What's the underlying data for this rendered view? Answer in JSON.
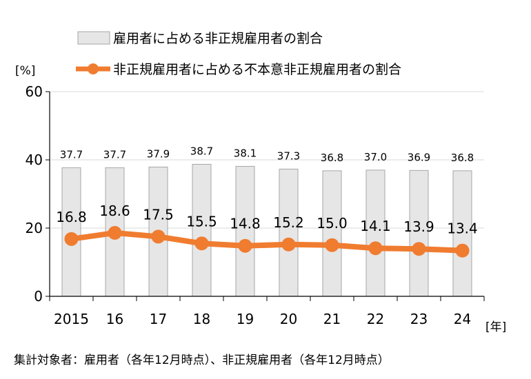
{
  "chart_data": {
    "type": "bar",
    "categories": [
      "2015",
      "16",
      "17",
      "18",
      "19",
      "20",
      "21",
      "22",
      "23",
      "24"
    ],
    "ylim": [
      0,
      60
    ],
    "yticks": [
      "0",
      "20",
      "40",
      "60"
    ],
    "yunit": "[%]",
    "xunit": "[年]",
    "legend_position": "top",
    "series": [
      {
        "name": "雇用者に占める非正規雇用者の割合",
        "kind": "bar",
        "color": "#e6e6e6",
        "values": [
          37.7,
          37.7,
          37.9,
          38.7,
          38.1,
          37.3,
          36.8,
          37.0,
          36.9,
          36.8
        ],
        "labels": [
          "37.7",
          "37.7",
          "37.9",
          "38.7",
          "38.1",
          "37.3",
          "36.8",
          "37.0",
          "36.9",
          "36.8"
        ]
      },
      {
        "name": "非正規雇用者に占める不本意非正規雇用者の割合",
        "kind": "line",
        "color": "#f07c30",
        "values": [
          16.8,
          18.6,
          17.5,
          15.5,
          14.8,
          15.2,
          15.0,
          14.1,
          13.9,
          13.4
        ],
        "labels": [
          "16.8",
          "18.6",
          "17.5",
          "15.5",
          "14.8",
          "15.2",
          "15.0",
          "14.1",
          "13.9",
          "13.4"
        ]
      }
    ],
    "grid": true,
    "footnote": "集計対象者：雇用者（各年12月時点）、非正規雇用者（各年12月時点）"
  }
}
